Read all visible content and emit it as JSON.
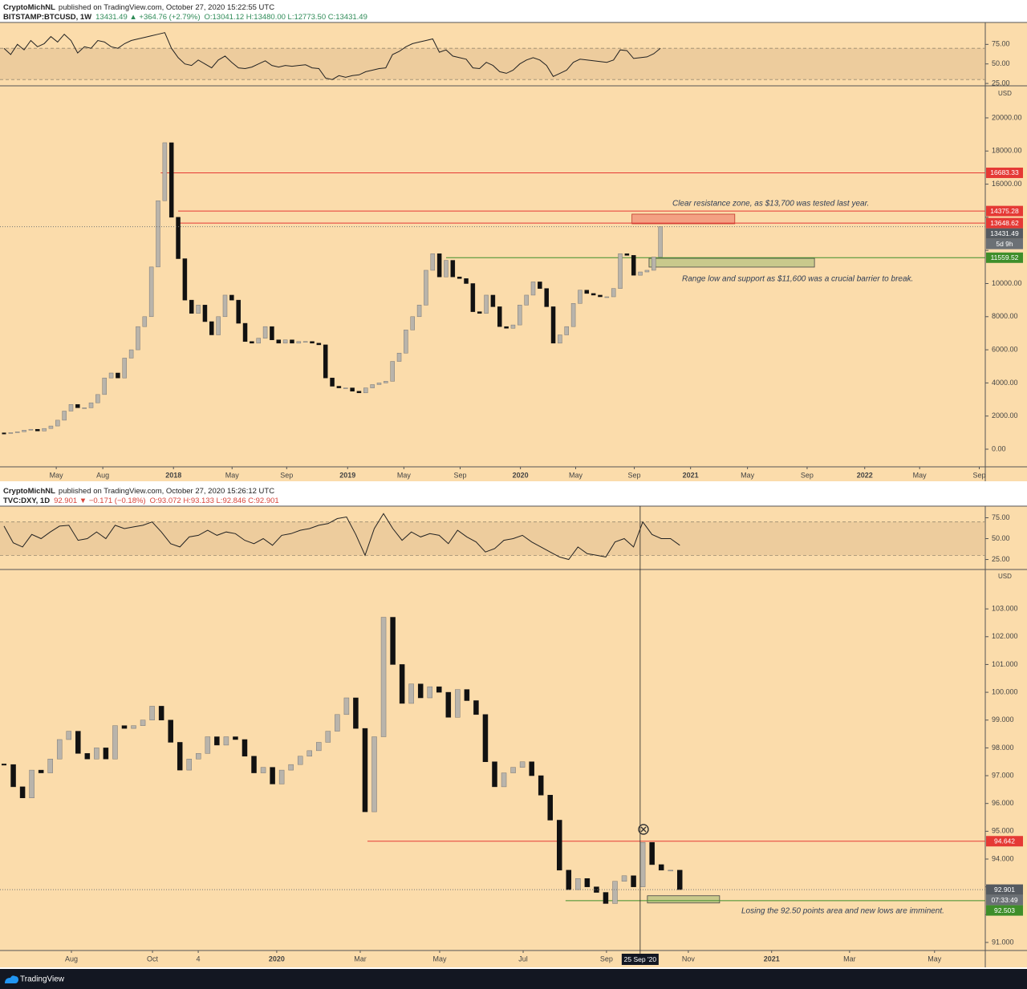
{
  "chart_data": [
    {
      "type": "candlestick",
      "author": "CryptoMichNL",
      "published": "published on TradingView.com, October 27, 2020 15:22:55 UTC",
      "symbol": "BITSTAMP:BTCUSD, 1W",
      "quote": "13431.49 ▲ +364.76 (+2.79%)",
      "ohlc": "O:13041.12 H:13480.00 L:12773.50 C:13431.49",
      "quote_color": "#2e8b57",
      "currency": "USD",
      "countdown": "5d 9h",
      "up_color": "#b9b4ab",
      "down_color": "#111111",
      "x": [
        0,
        2,
        4,
        6,
        8,
        10,
        12,
        14,
        16,
        18,
        20,
        22,
        24,
        26,
        28,
        30,
        32,
        34,
        36,
        38,
        40,
        42,
        44,
        46,
        48,
        50,
        52,
        54,
        56,
        58,
        60,
        62,
        64,
        66,
        68,
        70,
        72,
        74,
        76,
        78,
        80,
        82,
        84,
        86,
        88,
        90,
        92,
        94,
        96,
        98,
        100,
        102,
        104,
        106,
        108,
        110,
        112,
        114,
        116,
        118,
        120,
        122,
        124,
        126,
        128,
        130,
        132,
        134,
        136,
        138,
        140,
        142,
        144,
        146,
        148,
        150,
        152,
        154,
        156,
        158,
        160,
        162,
        164,
        166,
        168,
        170,
        172,
        174,
        176,
        178,
        180,
        182,
        184,
        186,
        188,
        190,
        192,
        194,
        196
      ],
      "values": [
        950,
        1000,
        1050,
        1150,
        1200,
        1100,
        1250,
        1400,
        1750,
        2300,
        2700,
        2500,
        2500,
        2800,
        3300,
        4300,
        4600,
        4300,
        5500,
        6000,
        7400,
        8000,
        11000,
        15000,
        18500,
        14000,
        11500,
        9000,
        8200,
        8700,
        7700,
        6900,
        8000,
        9300,
        9000,
        7600,
        6500,
        6400,
        6700,
        7400,
        6600,
        6400,
        6600,
        6400,
        6500,
        6500,
        6400,
        6300,
        4300,
        3800,
        3700,
        3700,
        3500,
        3400,
        3700,
        3900,
        4000,
        4100,
        5300,
        5800,
        7200,
        8000,
        8700,
        10800,
        11800,
        10400,
        11400,
        10400,
        10300,
        10000,
        8300,
        8200,
        9300,
        8600,
        7400,
        7300,
        7500,
        8700,
        9300,
        10100,
        9700,
        8600,
        6400,
        6900,
        7400,
        8800,
        9600,
        9400,
        9300,
        9200,
        9200,
        9700,
        11800,
        11700,
        10500,
        10700,
        10800,
        11600,
        13431.49
      ],
      "xlim": [
        0,
        293
      ],
      "xticks": [
        {
          "value": 15.6,
          "label": "May"
        },
        {
          "value": 29.5,
          "label": "Aug"
        },
        {
          "value": 50.6,
          "label": "2018"
        },
        {
          "value": 68.1,
          "label": "May"
        },
        {
          "value": 84.4,
          "label": "Sep"
        },
        {
          "value": 102.6,
          "label": "2019"
        },
        {
          "value": 119.4,
          "label": "May"
        },
        {
          "value": 136.2,
          "label": "Sep"
        },
        {
          "value": 154.2,
          "label": "2020"
        },
        {
          "value": 170.7,
          "label": "May"
        },
        {
          "value": 188.2,
          "label": "Sep"
        },
        {
          "value": 205,
          "label": "2021"
        },
        {
          "value": 222,
          "label": "May"
        },
        {
          "value": 239.8,
          "label": "Sep"
        },
        {
          "value": 257,
          "label": "2022"
        },
        {
          "value": 273.4,
          "label": "May"
        },
        {
          "value": 291.2,
          "label": "Sep"
        }
      ],
      "ylim": [
        -1065,
        21790
      ],
      "yticks": [
        {
          "value": 0,
          "label": "0.00"
        },
        {
          "value": 2000,
          "label": "2000.00"
        },
        {
          "value": 4000,
          "label": "4000.00"
        },
        {
          "value": 6000,
          "label": "6000.00"
        },
        {
          "value": 8000,
          "label": "8000.00"
        },
        {
          "value": 10000,
          "label": "10000.00"
        },
        {
          "value": 12000,
          "label": "12000.00"
        },
        {
          "value": 14000,
          "label": "14000.00"
        },
        {
          "value": 16000,
          "label": "16000.00"
        },
        {
          "value": 18000,
          "label": "18000.00"
        },
        {
          "value": 20000,
          "label": "20000.00"
        }
      ],
      "levels": [
        {
          "value": 16683.33,
          "start": 46.8,
          "color": "#e53935"
        },
        {
          "value": 14375.28,
          "start": 52,
          "color": "#e53935"
        },
        {
          "value": 13648.62,
          "start": 52,
          "color": "#e53935"
        },
        {
          "value": 11559.52,
          "start": 132,
          "color": "#3e8e2a"
        }
      ],
      "zones": [
        {
          "ylim": [
            13608,
            14189
          ],
          "xlim": [
            187.5,
            218.2
          ],
          "color": "#f4a183",
          "stroke": "#c0392b"
        },
        {
          "ylim": [
            10993,
            11525
          ],
          "xlim": [
            192.6,
            242
          ],
          "color": "#c9c98c",
          "stroke": "#444444"
        }
      ],
      "annotations": [
        "Clear resistance zone, as $13,700 was tested last year.",
        "Range low and support as $11,600 was a crucial barrier to break."
      ],
      "rsi": {
        "values": [
          70,
          62,
          75,
          68,
          80,
          72,
          76,
          85,
          78,
          88,
          80,
          64,
          72,
          70,
          80,
          78,
          72,
          70,
          76,
          80,
          82,
          84,
          86,
          88,
          90,
          70,
          58,
          50,
          48,
          55,
          50,
          45,
          55,
          60,
          52,
          45,
          44,
          46,
          50,
          54,
          48,
          46,
          48,
          47,
          48,
          49,
          45,
          44,
          32,
          30,
          35,
          33,
          35,
          36,
          40,
          42,
          44,
          45,
          62,
          66,
          72,
          76,
          78,
          80,
          82,
          65,
          68,
          60,
          58,
          56,
          45,
          44,
          52,
          48,
          40,
          38,
          42,
          50,
          55,
          58,
          55,
          48,
          34,
          38,
          42,
          52,
          56,
          55,
          54,
          53,
          52,
          55,
          68,
          67,
          57,
          58,
          59,
          63,
          70
        ],
        "ylim": [
          23,
          101
        ],
        "band": [
          30,
          70
        ],
        "yticks": [
          {
            "value": 75,
            "label": "75.00"
          },
          {
            "value": 50,
            "label": "50.00"
          },
          {
            "value": 25,
            "label": "25.00"
          }
        ]
      }
    },
    {
      "type": "candlestick",
      "author": "CryptoMichNL",
      "published": "published on TradingView.com, October 27, 2020 15:26:12 UTC",
      "symbol": "TVC:DXY, 1D",
      "quote": "92.901 ▼ −0.171 (−0.18%)",
      "ohlc": "O:93.072 H:93.133 L:92.846 C:92.901",
      "quote_color": "#d8443a",
      "currency": "USD",
      "countdown": "07:33:49",
      "up_color": "#b9b4ab",
      "down_color": "#111111",
      "x": [
        0,
        5,
        10,
        15,
        20,
        25,
        30,
        35,
        40,
        45,
        50,
        55,
        60,
        65,
        70,
        75,
        80,
        85,
        90,
        95,
        100,
        105,
        110,
        115,
        120,
        125,
        130,
        135,
        140,
        145,
        150,
        155,
        160,
        165,
        170,
        175,
        180,
        185,
        190,
        195,
        200,
        205,
        210,
        215,
        220,
        225,
        230,
        235,
        240,
        245,
        250,
        255,
        260,
        265,
        270,
        275,
        280,
        285,
        290,
        295,
        300,
        305,
        310,
        315,
        320,
        325,
        330,
        335,
        340,
        345,
        350,
        355,
        360,
        365
      ],
      "values": [
        97.4,
        96.6,
        96.2,
        97.2,
        97.1,
        97.6,
        98.3,
        98.6,
        97.8,
        97.6,
        98.0,
        97.6,
        98.8,
        98.7,
        98.8,
        99.0,
        99.5,
        99.0,
        98.2,
        97.2,
        97.6,
        97.8,
        98.4,
        98.1,
        98.4,
        98.3,
        97.7,
        97.1,
        97.3,
        96.7,
        97.2,
        97.4,
        97.7,
        97.9,
        98.2,
        98.6,
        99.2,
        99.8,
        98.7,
        95.7,
        98.4,
        102.7,
        101.0,
        99.6,
        100.3,
        99.8,
        100.2,
        100.0,
        99.1,
        100.1,
        99.7,
        99.2,
        97.5,
        96.6,
        97.1,
        97.3,
        97.5,
        97.0,
        96.3,
        95.4,
        93.6,
        92.9,
        93.3,
        93.0,
        92.8,
        92.4,
        93.2,
        93.4,
        93.0,
        94.6,
        93.8,
        93.6,
        93.6,
        92.901
      ],
      "xlim": [
        0,
        530
      ],
      "xticks": [
        {
          "value": 36.4,
          "label": "Aug"
        },
        {
          "value": 80.2,
          "label": "Oct"
        },
        {
          "value": 104.9,
          "label": "4"
        },
        {
          "value": 147.3,
          "label": "2020"
        },
        {
          "value": 192.4,
          "label": "Mar"
        },
        {
          "value": 235.3,
          "label": "May"
        },
        {
          "value": 280.4,
          "label": "Jul"
        },
        {
          "value": 325.4,
          "label": "Sep"
        },
        {
          "value": 369.6,
          "label": "Nov"
        },
        {
          "value": 414.6,
          "label": "2021"
        },
        {
          "value": 456.7,
          "label": "Mar"
        },
        {
          "value": 502.6,
          "label": "May"
        }
      ],
      "ylim": [
        90.71,
        104.36
      ],
      "yticks": [
        {
          "value": 91,
          "label": "91.000"
        },
        {
          "value": 92,
          "label": "92.000"
        },
        {
          "value": 93,
          "label": "93.000"
        },
        {
          "value": 94,
          "label": "94.000"
        },
        {
          "value": 95,
          "label": "95.000"
        },
        {
          "value": 96,
          "label": "96.000"
        },
        {
          "value": 97,
          "label": "97.000"
        },
        {
          "value": 98,
          "label": "98.000"
        },
        {
          "value": 99,
          "label": "99.000"
        },
        {
          "value": 100,
          "label": "100.000"
        },
        {
          "value": 101,
          "label": "101.000"
        },
        {
          "value": 102,
          "label": "102.000"
        },
        {
          "value": 103,
          "label": "103.000"
        }
      ],
      "levels": [
        {
          "value": 94.642,
          "start": 196.3,
          "color": "#e53935"
        },
        {
          "value": 92.503,
          "start": 303.3,
          "color": "#3e8e2a"
        }
      ],
      "zones": [
        {
          "ylim": [
            92.42,
            92.68
          ],
          "xlim": [
            347.5,
            386.5
          ],
          "color": "#c9c98c",
          "stroke": "#444444"
        }
      ],
      "annotations": [
        "Losing the 92.50 points area and new lows are imminent."
      ],
      "crosshair": {
        "x": 343.6,
        "label": "25 Sep '20"
      },
      "rsi": {
        "values": [
          65,
          45,
          40,
          55,
          50,
          58,
          65,
          66,
          48,
          50,
          58,
          50,
          66,
          62,
          64,
          66,
          70,
          58,
          44,
          40,
          52,
          54,
          60,
          54,
          58,
          56,
          48,
          44,
          50,
          42,
          54,
          56,
          60,
          62,
          66,
          68,
          74,
          76,
          55,
          30,
          62,
          80,
          62,
          48,
          58,
          52,
          56,
          54,
          44,
          60,
          52,
          46,
          34,
          38,
          48,
          50,
          54,
          46,
          40,
          34,
          28,
          25,
          40,
          32,
          30,
          28,
          46,
          50,
          40,
          70,
          55,
          50,
          50,
          42
        ],
        "ylim": [
          14,
          87
        ],
        "band": [
          30,
          70
        ],
        "yticks": [
          {
            "value": 75,
            "label": "75.00"
          },
          {
            "value": 50,
            "label": "50.00"
          },
          {
            "value": 25,
            "label": "25.00"
          }
        ]
      }
    }
  ],
  "footer": {
    "brand": "TradingView"
  }
}
